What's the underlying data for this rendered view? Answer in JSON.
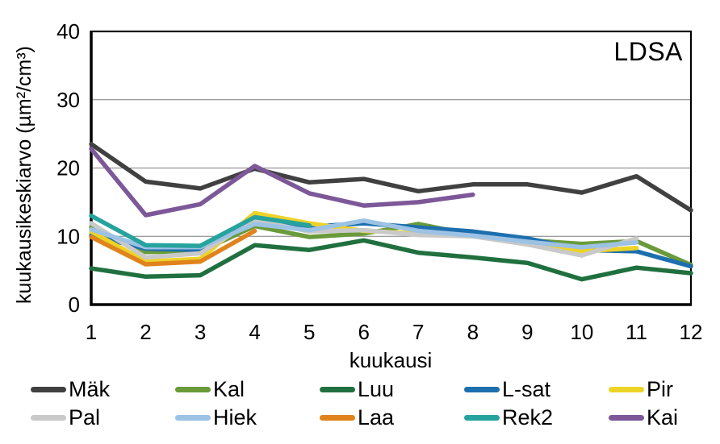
{
  "chart_data": {
    "type": "line",
    "annotation": "LDSA",
    "xlabel": "kuukausi",
    "ylabel": "kuukausikeskiarvo (µm²/cm³)",
    "x": [
      1,
      2,
      3,
      4,
      5,
      6,
      7,
      8,
      9,
      10,
      11,
      12
    ],
    "xlim": [
      1,
      12
    ],
    "ylim": [
      0,
      40
    ],
    "yticks": [
      0,
      10,
      20,
      30,
      40
    ],
    "grid": "horizontal",
    "legend_position": "bottom",
    "series": [
      {
        "name": "Mäk",
        "color": "#404040",
        "values": [
          23.5,
          18.0,
          17.0,
          19.9,
          17.9,
          18.4,
          16.6,
          17.6,
          17.6,
          16.4,
          18.8,
          13.8
        ]
      },
      {
        "name": "Kal",
        "color": "#6a9a3a",
        "values": [
          11.3,
          7.7,
          7.8,
          11.5,
          9.9,
          10.4,
          11.8,
          10.2,
          9.4,
          8.9,
          9.3,
          5.8
        ]
      },
      {
        "name": "Luu",
        "color": "#20703f",
        "values": [
          5.3,
          4.1,
          4.3,
          8.7,
          8.0,
          9.4,
          7.6,
          6.9,
          6.1,
          3.7,
          5.4,
          4.6
        ]
      },
      {
        "name": "L-sat",
        "color": "#1d6fae",
        "values": [
          10.1,
          8.2,
          8.0,
          12.0,
          11.4,
          11.9,
          11.3,
          10.7,
          9.7,
          8.0,
          7.8,
          5.6
        ]
      },
      {
        "name": "Pir",
        "color": "#eed327",
        "values": [
          10.7,
          6.3,
          6.7,
          13.4,
          11.9,
          10.8,
          10.4,
          10.0,
          9.0,
          7.8,
          8.3,
          null
        ]
      },
      {
        "name": "Pal",
        "color": "#c9c9c9",
        "values": [
          11.9,
          6.9,
          7.5,
          12.4,
          10.7,
          10.9,
          10.2,
          10.0,
          8.8,
          7.2,
          9.7,
          null
        ]
      },
      {
        "name": "Hiek",
        "color": "#9cc2e4",
        "values": [
          11.0,
          8.4,
          8.4,
          11.8,
          10.9,
          12.3,
          10.8,
          10.1,
          9.2,
          8.4,
          9.1,
          null
        ]
      },
      {
        "name": "Laa",
        "color": "#e0831c",
        "values": [
          9.9,
          5.9,
          6.3,
          10.8,
          null,
          null,
          null,
          null,
          null,
          null,
          null,
          null
        ]
      },
      {
        "name": "Rek2",
        "color": "#27a39e",
        "values": [
          13.0,
          8.7,
          8.6,
          12.8,
          11.6,
          null,
          null,
          null,
          null,
          null,
          null,
          null
        ]
      },
      {
        "name": "Kai",
        "color": "#7d5899",
        "values": [
          22.8,
          13.1,
          14.7,
          20.3,
          16.3,
          14.5,
          15.0,
          16.1,
          null,
          null,
          null,
          null
        ]
      }
    ]
  }
}
